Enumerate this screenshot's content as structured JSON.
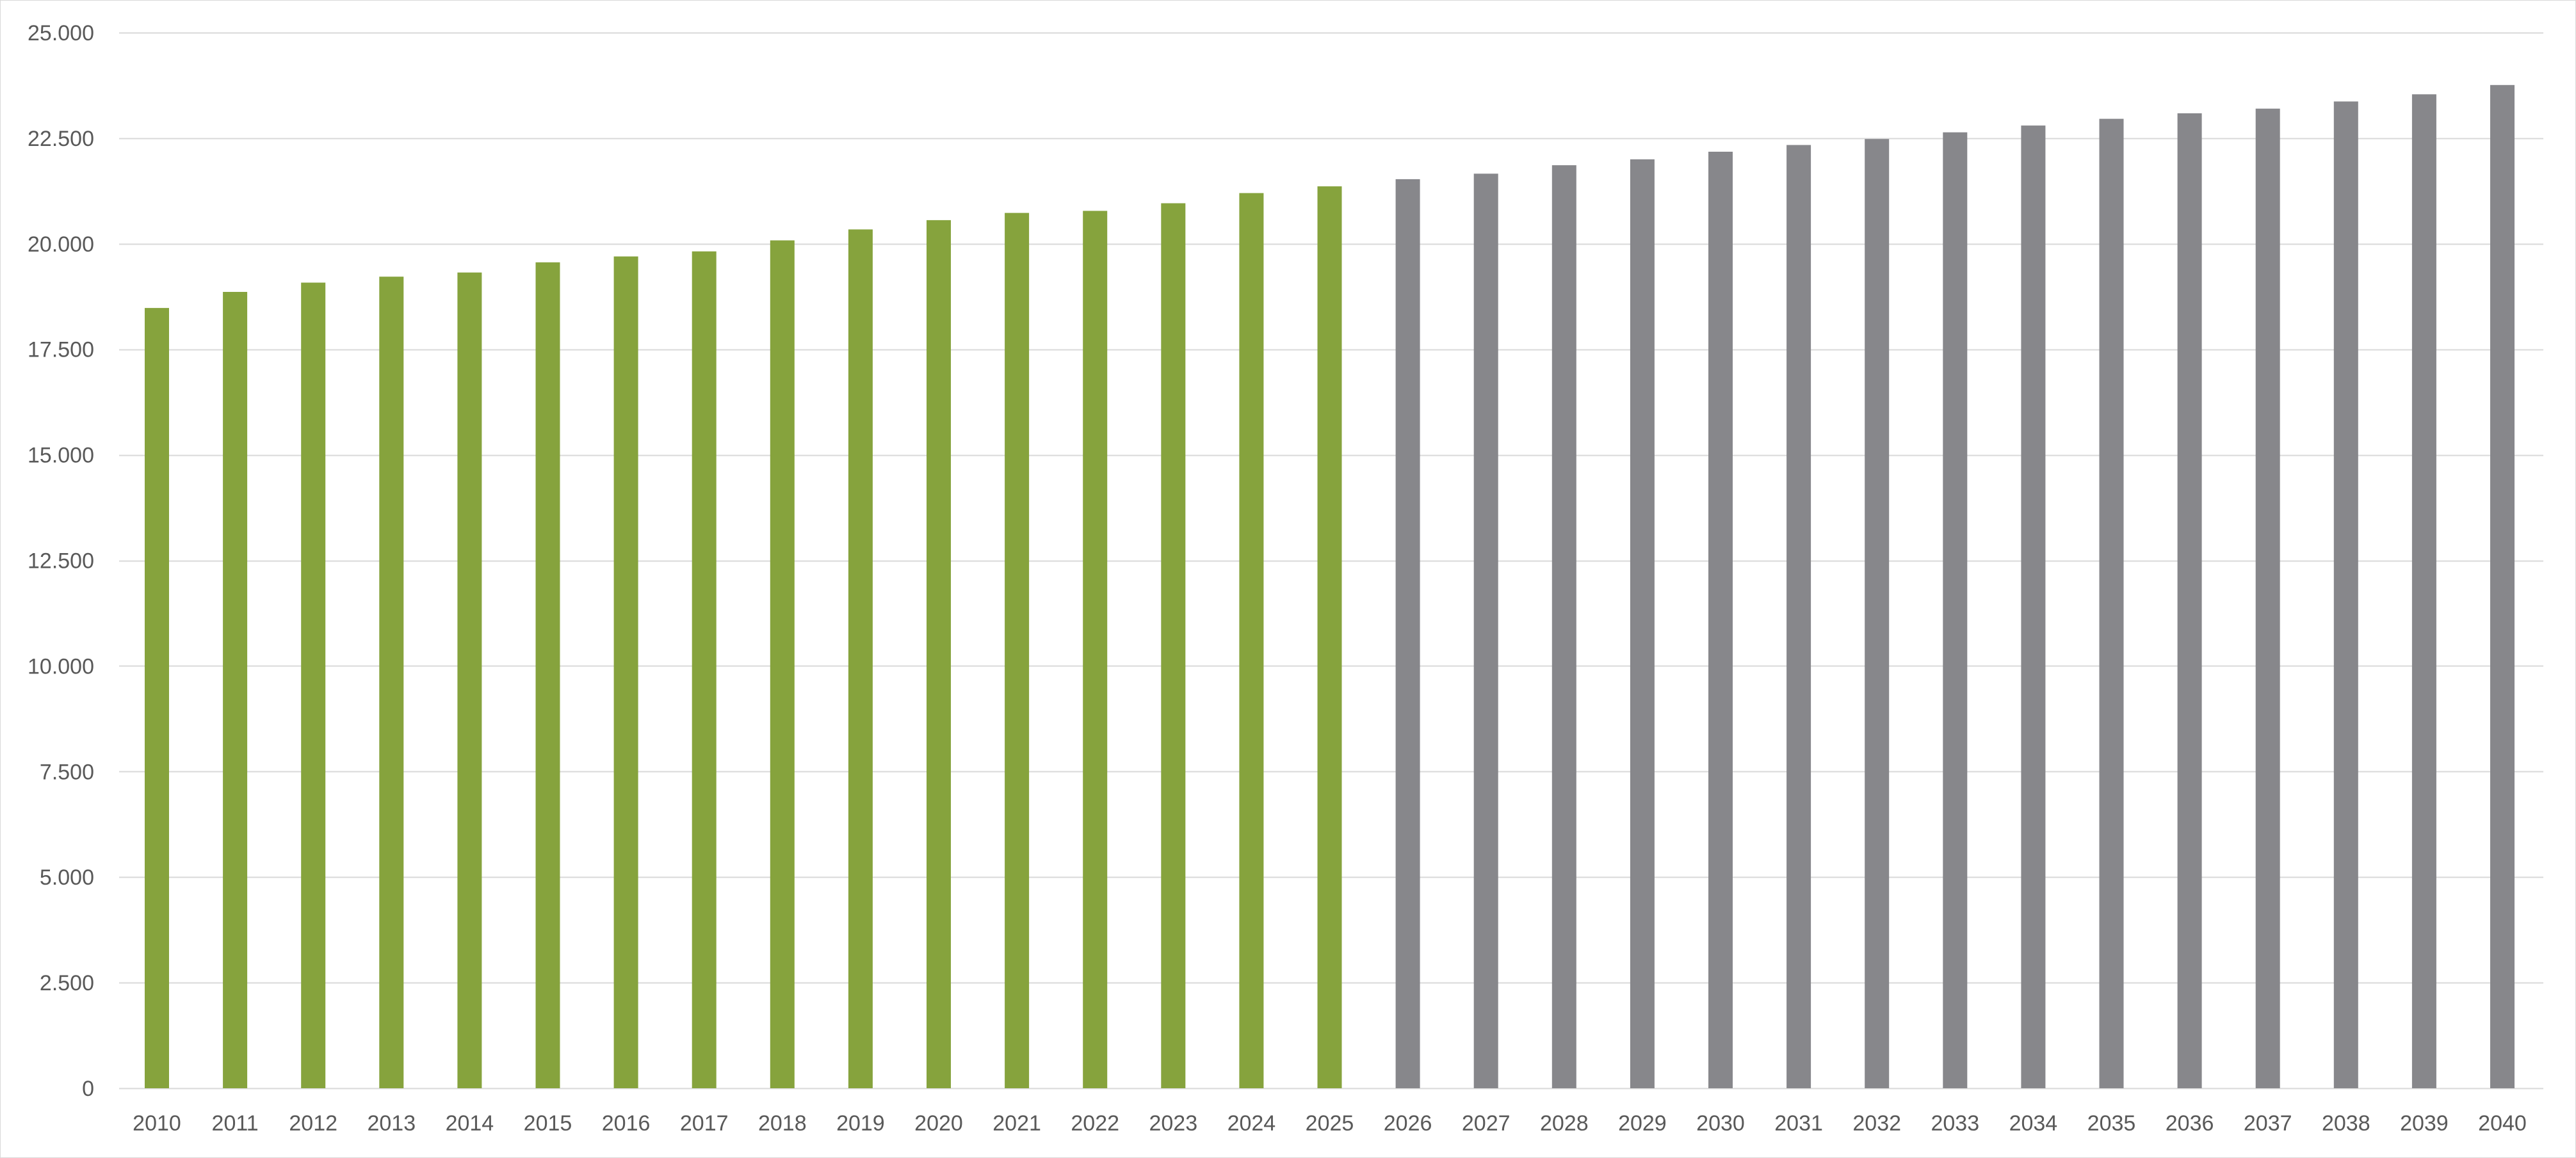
{
  "chart_data": {
    "type": "bar",
    "title": "",
    "xlabel": "",
    "ylabel": "",
    "categories": [
      "2010",
      "2011",
      "2012",
      "2013",
      "2014",
      "2015",
      "2016",
      "2017",
      "2018",
      "2019",
      "2020",
      "2021",
      "2022",
      "2023",
      "2024",
      "2025",
      "2026",
      "2027",
      "2028",
      "2029",
      "2030",
      "2031",
      "2032",
      "2033",
      "2034",
      "2035",
      "2036",
      "2037",
      "2038",
      "2039",
      "2040"
    ],
    "values": [
      18480,
      18860,
      19080,
      19220,
      19320,
      19560,
      19700,
      19820,
      20080,
      20340,
      20560,
      20730,
      20780,
      20960,
      21200,
      21360,
      21530,
      21660,
      21860,
      22000,
      22180,
      22340,
      22480,
      22640,
      22800,
      22960,
      23090,
      23200,
      23370,
      23540,
      23760
    ],
    "series_colors": [
      "#86a33d",
      "#86a33d",
      "#86a33d",
      "#86a33d",
      "#86a33d",
      "#86a33d",
      "#86a33d",
      "#86a33d",
      "#86a33d",
      "#86a33d",
      "#86a33d",
      "#86a33d",
      "#86a33d",
      "#86a33d",
      "#86a33d",
      "#86a33d",
      "#87878b",
      "#87878b",
      "#87878b",
      "#87878b",
      "#87878b",
      "#87878b",
      "#87878b",
      "#87878b",
      "#87878b",
      "#87878b",
      "#87878b",
      "#87878b",
      "#87878b",
      "#87878b",
      "#87878b"
    ],
    "ylim": [
      0,
      25000
    ],
    "yticks": [
      0,
      2500,
      5000,
      7500,
      10000,
      12500,
      15000,
      17500,
      20000,
      22500,
      25000
    ],
    "ytick_labels": [
      "0",
      "2.500",
      "5.000",
      "7.500",
      "10.000",
      "12.500",
      "15.000",
      "17.500",
      "20.000",
      "22.500",
      "25.000"
    ],
    "grid": true,
    "legend": "none",
    "colors": {
      "actual": "#86a33d",
      "projected": "#87878b",
      "gridline": "#d9d9d9",
      "tick_text": "#595959"
    }
  }
}
